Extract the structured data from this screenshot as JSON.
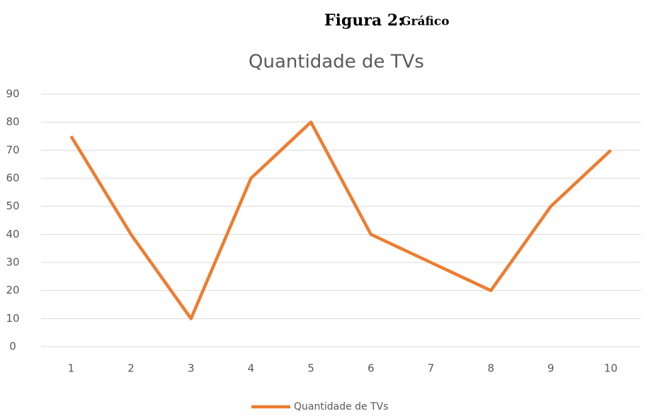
{
  "caption": {
    "label": "Figura 2:",
    "text": "Gráfico"
  },
  "chart_data": {
    "type": "line",
    "title": "Quantidade de TVs",
    "categories": [
      "1",
      "2",
      "3",
      "4",
      "5",
      "6",
      "7",
      "8",
      "9",
      "10"
    ],
    "series": [
      {
        "name": "Quantidade de TVs",
        "color": "#ed7d31",
        "values": [
          75,
          40,
          10,
          60,
          80,
          40,
          30,
          20,
          50,
          70
        ]
      }
    ],
    "ylim": [
      0,
      90
    ],
    "yticks": [
      0,
      10,
      20,
      30,
      40,
      50,
      60,
      70,
      80,
      90
    ],
    "grid": true,
    "legend": "bottom"
  }
}
